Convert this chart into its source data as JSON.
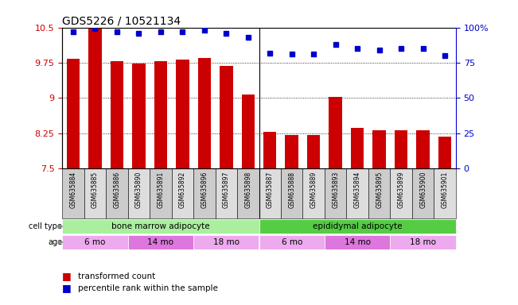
{
  "title": "GDS5226 / 10521134",
  "samples": [
    "GSM635884",
    "GSM635885",
    "GSM635886",
    "GSM635890",
    "GSM635891",
    "GSM635892",
    "GSM635896",
    "GSM635897",
    "GSM635898",
    "GSM635887",
    "GSM635888",
    "GSM635889",
    "GSM635893",
    "GSM635894",
    "GSM635895",
    "GSM635899",
    "GSM635900",
    "GSM635901"
  ],
  "bar_values": [
    9.84,
    10.47,
    9.79,
    9.74,
    9.78,
    9.82,
    9.85,
    9.69,
    9.07,
    8.28,
    8.22,
    8.21,
    9.03,
    8.37,
    8.31,
    8.32,
    8.31,
    8.18
  ],
  "dot_values": [
    97,
    99,
    97,
    96,
    97,
    97,
    98,
    96,
    93,
    82,
    81,
    81,
    88,
    85,
    84,
    85,
    85,
    80
  ],
  "ymin": 7.5,
  "ymax": 10.5,
  "yticks": [
    7.5,
    8.25,
    9.0,
    9.75,
    10.5
  ],
  "ytick_labels": [
    "7.5",
    "8.25",
    "9",
    "9.75",
    "10.5"
  ],
  "y2ticks": [
    0,
    25,
    50,
    75,
    100
  ],
  "y2tick_labels": [
    "0",
    "25",
    "50",
    "75",
    "100%"
  ],
  "bar_color": "#cc0000",
  "dot_color": "#0000cc",
  "left_ylabel_color": "#cc0000",
  "right_ylabel_color": "#0000cc",
  "cell_type_groups": [
    {
      "label": "bone marrow adipocyte",
      "start": 0,
      "end": 8,
      "color": "#aaeea0"
    },
    {
      "label": "epididymal adipocyte",
      "start": 9,
      "end": 17,
      "color": "#55cc44"
    }
  ],
  "age_groups": [
    {
      "label": "6 mo",
      "start": 0,
      "end": 2,
      "color": "#eeaaee"
    },
    {
      "label": "14 mo",
      "start": 3,
      "end": 5,
      "color": "#dd77dd"
    },
    {
      "label": "18 mo",
      "start": 6,
      "end": 8,
      "color": "#eeaaee"
    },
    {
      "label": "6 mo",
      "start": 9,
      "end": 11,
      "color": "#eeaaee"
    },
    {
      "label": "14 mo",
      "start": 12,
      "end": 14,
      "color": "#dd77dd"
    },
    {
      "label": "18 mo",
      "start": 15,
      "end": 17,
      "color": "#eeaaee"
    }
  ],
  "cell_type_label": "cell type",
  "age_label": "age",
  "legend_bar": "transformed count",
  "legend_dot": "percentile rank within the sample",
  "divider_after": 8,
  "sample_bg_even": "#cccccc",
  "sample_bg_odd": "#dddddd"
}
